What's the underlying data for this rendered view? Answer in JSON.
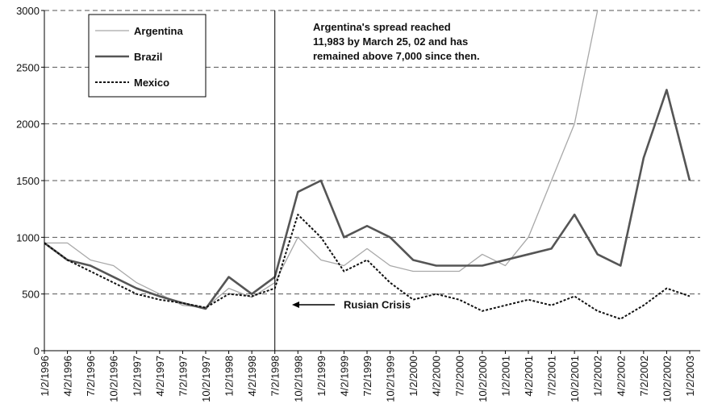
{
  "chart_data": {
    "type": "line",
    "categories": [
      "1/2/1996",
      "4/2/1996",
      "7/2/1996",
      "10/2/1996",
      "1/2/1997",
      "4/2/1997",
      "7/2/1997",
      "10/2/1997",
      "1/2/1998",
      "4/2/1998",
      "7/2/1998",
      "10/2/1998",
      "1/2/1999",
      "4/2/1999",
      "7/2/1999",
      "10/2/1999",
      "1/2/2000",
      "4/2/2000",
      "7/2/2000",
      "10/2/2000",
      "1/2/2001",
      "4/2/2001",
      "7/2/2001",
      "10/2/2001",
      "1/2/2002",
      "4/2/2002",
      "7/2/2002",
      "10/2/2002",
      "1/2/2003"
    ],
    "series": [
      {
        "name": "Argentina",
        "color": "#a8a8a8",
        "values": [
          950,
          950,
          800,
          750,
          600,
          500,
          400,
          380,
          550,
          470,
          600,
          1000,
          800,
          750,
          900,
          750,
          700,
          700,
          700,
          850,
          750,
          1000,
          1500,
          2000,
          3000,
          null,
          null,
          null,
          null
        ]
      },
      {
        "name": "Brazil",
        "color": "#555555",
        "values": [
          950,
          800,
          750,
          650,
          550,
          480,
          420,
          370,
          650,
          500,
          650,
          1400,
          1500,
          1000,
          1100,
          1000,
          800,
          750,
          750,
          750,
          800,
          850,
          900,
          1200,
          850,
          750,
          1700,
          2300,
          1500
        ]
      },
      {
        "name": "Mexico",
        "color": "#111111",
        "values": [
          950,
          800,
          700,
          600,
          500,
          450,
          420,
          380,
          500,
          480,
          550,
          1200,
          1000,
          700,
          800,
          600,
          450,
          500,
          450,
          350,
          400,
          450,
          400,
          480,
          350,
          280,
          400,
          550,
          480
        ]
      }
    ],
    "ylim": [
      0,
      3000
    ],
    "yticks": [
      0,
      500,
      1000,
      1500,
      2000,
      2500,
      3000
    ],
    "grid": true,
    "annotations": [
      "Argentina's spread reached",
      "11,983 by March 25, 02 and has",
      "remained above 7,000 since then."
    ],
    "crisis_label": "Rusian Crisis"
  }
}
